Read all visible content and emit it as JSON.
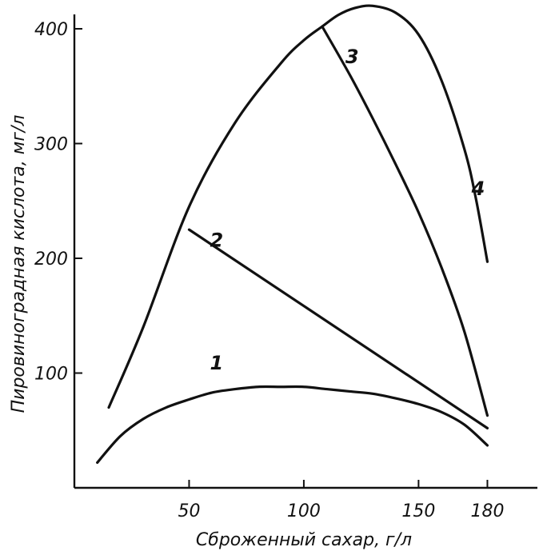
{
  "chart_data": {
    "type": "line",
    "title": "",
    "xlabel": "Сброженный сахар, г/л",
    "ylabel": "Пировиноградная кислота, мг/л",
    "xlim": [
      0,
      200
    ],
    "ylim": [
      0,
      420
    ],
    "x_ticks": [
      50,
      100,
      150,
      180
    ],
    "y_ticks": [
      100,
      200,
      300,
      400
    ],
    "grid": false,
    "legend": "none",
    "series": [
      {
        "name": "1",
        "x": [
          10,
          20,
          30,
          40,
          50,
          60,
          70,
          80,
          90,
          100,
          110,
          120,
          130,
          140,
          150,
          160,
          170,
          180
        ],
        "y": [
          22,
          45,
          60,
          70,
          77,
          83,
          86,
          88,
          88,
          88,
          86,
          84,
          82,
          78,
          73,
          66,
          55,
          37
        ]
      },
      {
        "name": "2",
        "x": [
          50,
          180
        ],
        "y": [
          225,
          52
        ]
      },
      {
        "name": "3",
        "x": [
          108,
          120,
          130,
          140,
          150,
          160,
          170,
          180
        ],
        "y": [
          402,
          360,
          322,
          282,
          240,
          192,
          136,
          63
        ]
      },
      {
        "name": "4",
        "x": [
          15,
          30,
          50,
          70,
          90,
          100,
          108,
          115,
          122,
          130,
          140,
          150,
          160,
          170,
          175,
          180
        ],
        "y": [
          70,
          140,
          245,
          318,
          370,
          390,
          402,
          412,
          418,
          420,
          414,
          395,
          355,
          295,
          252,
          197
        ]
      }
    ],
    "annotations": [
      {
        "text": "1",
        "x": 62,
        "y": 103
      },
      {
        "text": "2",
        "x": 62,
        "y": 210
      },
      {
        "text": "3",
        "x": 121,
        "y": 370
      },
      {
        "text": "4",
        "x": 176,
        "y": 255
      }
    ]
  }
}
